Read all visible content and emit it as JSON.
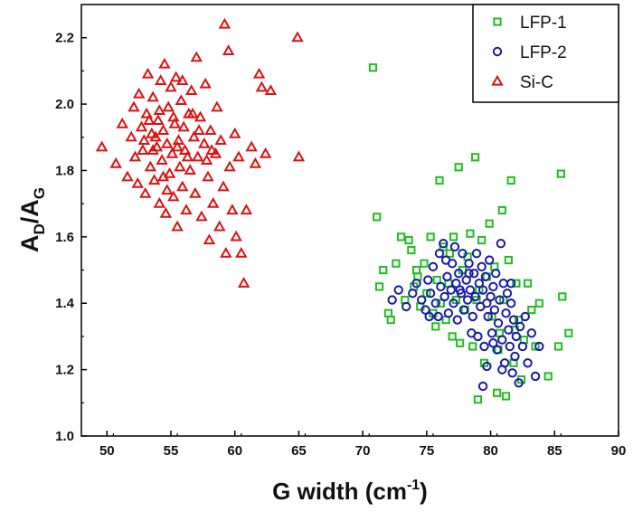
{
  "chart_data": {
    "type": "scatter",
    "title": "",
    "xlabel": "G width (cm",
    "xlabel_superscript": "-1",
    "xlabel_suffix": ")",
    "ylabel": "A",
    "ylabel_sub1": "D",
    "ylabel_mid": "/A",
    "ylabel_sub2": "G",
    "xlim": [
      48,
      90
    ],
    "ylim": [
      1.0,
      2.3
    ],
    "xticks": [
      50,
      55,
      60,
      65,
      70,
      75,
      80,
      85,
      90
    ],
    "yticks": [
      1.0,
      1.2,
      1.4,
      1.6,
      1.8,
      2.0,
      2.2
    ],
    "xtick_labels": [
      "50",
      "55",
      "60",
      "65",
      "70",
      "75",
      "80",
      "85",
      "90"
    ],
    "ytick_labels": [
      "1.0",
      "1.2",
      "1.4",
      "1.6",
      "1.8",
      "2.0",
      "2.2"
    ],
    "legend_position": "top-right",
    "series": [
      {
        "name": "LFP-1",
        "marker": "square",
        "color": "#22bb22",
        "points": [
          [
            70.8,
            2.11
          ],
          [
            71.1,
            1.66
          ],
          [
            71.3,
            1.45
          ],
          [
            71.6,
            1.5
          ],
          [
            72.0,
            1.37
          ],
          [
            72.2,
            1.35
          ],
          [
            72.6,
            1.52
          ],
          [
            73.0,
            1.6
          ],
          [
            73.3,
            1.41
          ],
          [
            73.6,
            1.59
          ],
          [
            73.8,
            1.56
          ],
          [
            74.0,
            1.45
          ],
          [
            74.3,
            1.48
          ],
          [
            74.5,
            1.39
          ],
          [
            74.8,
            1.52
          ],
          [
            75.0,
            1.43
          ],
          [
            75.3,
            1.6
          ],
          [
            75.5,
            1.37
          ],
          [
            75.7,
            1.33
          ],
          [
            76.0,
            1.77
          ],
          [
            76.1,
            1.4
          ],
          [
            76.3,
            1.57
          ],
          [
            76.5,
            1.35
          ],
          [
            76.7,
            1.46
          ],
          [
            77.0,
            1.3
          ],
          [
            77.1,
            1.6
          ],
          [
            77.3,
            1.41
          ],
          [
            77.5,
            1.81
          ],
          [
            77.6,
            1.28
          ],
          [
            77.8,
            1.5
          ],
          [
            78.0,
            1.38
          ],
          [
            78.2,
            1.54
          ],
          [
            78.4,
            1.61
          ],
          [
            78.6,
            1.27
          ],
          [
            78.8,
            1.84
          ],
          [
            79.0,
            1.11
          ],
          [
            79.1,
            1.44
          ],
          [
            79.3,
            1.59
          ],
          [
            79.5,
            1.22
          ],
          [
            79.7,
            1.48
          ],
          [
            79.9,
            1.64
          ],
          [
            80.1,
            1.36
          ],
          [
            80.3,
            1.51
          ],
          [
            80.5,
            1.13
          ],
          [
            80.7,
            1.31
          ],
          [
            80.9,
            1.68
          ],
          [
            81.0,
            1.41
          ],
          [
            81.2,
            1.12
          ],
          [
            81.4,
            1.53
          ],
          [
            81.6,
            1.77
          ],
          [
            81.8,
            1.22
          ],
          [
            82.0,
            1.46
          ],
          [
            82.2,
            1.35
          ],
          [
            82.4,
            1.17
          ],
          [
            82.6,
            1.29
          ],
          [
            82.9,
            1.46
          ],
          [
            83.2,
            1.38
          ],
          [
            83.5,
            1.27
          ],
          [
            83.8,
            1.4
          ],
          [
            84.5,
            1.18
          ],
          [
            85.3,
            1.27
          ],
          [
            85.5,
            1.79
          ],
          [
            85.6,
            1.42
          ],
          [
            86.1,
            1.31
          ],
          [
            74.2,
            1.5
          ],
          [
            75.8,
            1.47
          ],
          [
            76.8,
            1.55
          ],
          [
            78.9,
            1.41
          ],
          [
            80.6,
            1.26
          ],
          [
            81.9,
            1.32
          ]
        ]
      },
      {
        "name": "LFP-2",
        "marker": "circle",
        "color": "#1a1aa6",
        "points": [
          [
            72.3,
            1.41
          ],
          [
            72.8,
            1.44
          ],
          [
            73.4,
            1.39
          ],
          [
            73.9,
            1.43
          ],
          [
            74.2,
            1.46
          ],
          [
            74.6,
            1.41
          ],
          [
            74.9,
            1.38
          ],
          [
            75.1,
            1.47
          ],
          [
            75.3,
            1.43
          ],
          [
            75.5,
            1.51
          ],
          [
            75.7,
            1.4
          ],
          [
            75.9,
            1.36
          ],
          [
            76.0,
            1.55
          ],
          [
            76.1,
            1.45
          ],
          [
            76.3,
            1.58
          ],
          [
            76.4,
            1.42
          ],
          [
            76.6,
            1.48
          ],
          [
            76.7,
            1.37
          ],
          [
            76.9,
            1.44
          ],
          [
            77.0,
            1.52
          ],
          [
            77.1,
            1.4
          ],
          [
            77.3,
            1.46
          ],
          [
            77.4,
            1.35
          ],
          [
            77.5,
            1.49
          ],
          [
            77.7,
            1.43
          ],
          [
            77.8,
            1.55
          ],
          [
            77.9,
            1.38
          ],
          [
            78.1,
            1.47
          ],
          [
            78.2,
            1.41
          ],
          [
            78.3,
            1.52
          ],
          [
            78.4,
            1.44
          ],
          [
            78.6,
            1.36
          ],
          [
            78.7,
            1.49
          ],
          [
            78.8,
            1.42
          ],
          [
            78.9,
            1.55
          ],
          [
            79.0,
            1.3
          ],
          [
            79.1,
            1.46
          ],
          [
            79.2,
            1.39
          ],
          [
            79.3,
            1.51
          ],
          [
            79.4,
            1.44
          ],
          [
            79.5,
            1.27
          ],
          [
            79.6,
            1.48
          ],
          [
            79.7,
            1.21
          ],
          [
            79.8,
            1.36
          ],
          [
            79.9,
            1.53
          ],
          [
            80.0,
            1.42
          ],
          [
            80.1,
            1.31
          ],
          [
            80.2,
            1.45
          ],
          [
            80.3,
            1.38
          ],
          [
            80.4,
            1.49
          ],
          [
            80.5,
            1.26
          ],
          [
            80.6,
            1.34
          ],
          [
            80.7,
            1.41
          ],
          [
            80.8,
            1.58
          ],
          [
            80.9,
            1.29
          ],
          [
            81.0,
            1.46
          ],
          [
            81.1,
            1.22
          ],
          [
            81.2,
            1.37
          ],
          [
            81.3,
            1.43
          ],
          [
            81.4,
            1.32
          ],
          [
            81.5,
            1.27
          ],
          [
            81.6,
            1.4
          ],
          [
            81.7,
            1.19
          ],
          [
            81.8,
            1.35
          ],
          [
            81.9,
            1.24
          ],
          [
            82.0,
            1.3
          ],
          [
            82.2,
            1.16
          ],
          [
            82.3,
            1.33
          ],
          [
            82.5,
            1.27
          ],
          [
            82.7,
            1.36
          ],
          [
            82.9,
            1.22
          ],
          [
            83.2,
            1.31
          ],
          [
            83.5,
            1.18
          ],
          [
            83.8,
            1.27
          ],
          [
            79.4,
            1.15
          ],
          [
            80.9,
            1.2
          ],
          [
            78.3,
            1.49
          ],
          [
            77.2,
            1.57
          ],
          [
            76.5,
            1.53
          ],
          [
            75.2,
            1.36
          ],
          [
            79.7,
            1.4
          ],
          [
            80.2,
            1.28
          ],
          [
            78.5,
            1.31
          ],
          [
            77.6,
            1.44
          ],
          [
            81.6,
            1.46
          ]
        ]
      },
      {
        "name": "Si-C",
        "marker": "triangle",
        "color": "#dd1111",
        "points": [
          [
            49.6,
            1.87
          ],
          [
            50.7,
            1.82
          ],
          [
            51.2,
            1.94
          ],
          [
            51.6,
            1.78
          ],
          [
            51.9,
            1.9
          ],
          [
            52.1,
            1.99
          ],
          [
            52.2,
            1.84
          ],
          [
            52.4,
            1.76
          ],
          [
            52.5,
            2.03
          ],
          [
            52.7,
            1.93
          ],
          [
            52.8,
            1.86
          ],
          [
            53.0,
            1.73
          ],
          [
            53.1,
            1.97
          ],
          [
            53.2,
            2.09
          ],
          [
            53.4,
            1.81
          ],
          [
            53.5,
            1.91
          ],
          [
            53.6,
            2.02
          ],
          [
            53.7,
            1.77
          ],
          [
            53.9,
            1.87
          ],
          [
            54.0,
            1.95
          ],
          [
            54.1,
            1.7
          ],
          [
            54.2,
            2.07
          ],
          [
            54.3,
            1.83
          ],
          [
            54.4,
            1.92
          ],
          [
            54.5,
            2.12
          ],
          [
            54.6,
            1.67
          ],
          [
            54.7,
            1.88
          ],
          [
            54.8,
            1.99
          ],
          [
            54.9,
            1.79
          ],
          [
            55.0,
            2.05
          ],
          [
            55.1,
            1.85
          ],
          [
            55.2,
            1.72
          ],
          [
            55.3,
            1.94
          ],
          [
            55.4,
            2.08
          ],
          [
            55.5,
            1.63
          ],
          [
            55.6,
            1.89
          ],
          [
            55.7,
            1.81
          ],
          [
            55.8,
            2.01
          ],
          [
            55.9,
            1.75
          ],
          [
            56.0,
            1.93
          ],
          [
            56.1,
            1.86
          ],
          [
            56.2,
            1.68
          ],
          [
            56.4,
            1.97
          ],
          [
            56.5,
            1.8
          ],
          [
            56.6,
            2.04
          ],
          [
            56.8,
            1.9
          ],
          [
            56.9,
            1.73
          ],
          [
            57.0,
            2.14
          ],
          [
            57.1,
            1.84
          ],
          [
            57.3,
            1.96
          ],
          [
            57.4,
            1.66
          ],
          [
            57.6,
            1.88
          ],
          [
            57.7,
            2.06
          ],
          [
            57.9,
            1.78
          ],
          [
            58.0,
            1.59
          ],
          [
            58.1,
            1.92
          ],
          [
            58.3,
            1.7
          ],
          [
            58.5,
            1.85
          ],
          [
            58.6,
            1.99
          ],
          [
            58.8,
            1.63
          ],
          [
            58.9,
            1.89
          ],
          [
            59.1,
            1.75
          ],
          [
            59.2,
            2.24
          ],
          [
            59.3,
            1.55
          ],
          [
            59.5,
            2.16
          ],
          [
            59.6,
            1.81
          ],
          [
            59.8,
            1.68
          ],
          [
            60.0,
            1.91
          ],
          [
            60.1,
            1.6
          ],
          [
            60.3,
            1.84
          ],
          [
            60.5,
            1.55
          ],
          [
            60.7,
            1.46
          ],
          [
            60.9,
            1.68
          ],
          [
            61.3,
            1.87
          ],
          [
            61.6,
            1.82
          ],
          [
            61.9,
            2.09
          ],
          [
            62.1,
            2.05
          ],
          [
            62.4,
            1.85
          ],
          [
            62.8,
            2.04
          ],
          [
            64.9,
            2.2
          ],
          [
            65.0,
            1.84
          ],
          [
            53.3,
            1.95
          ],
          [
            54.1,
            1.98
          ],
          [
            55.2,
            1.96
          ],
          [
            56.3,
            1.84
          ],
          [
            57.2,
            1.92
          ],
          [
            58.2,
            1.86
          ],
          [
            53.8,
            1.9
          ],
          [
            55.9,
            2.07
          ],
          [
            54.7,
            1.74
          ],
          [
            52.9,
            1.89
          ],
          [
            56.7,
            1.97
          ],
          [
            57.8,
            1.83
          ],
          [
            55.5,
            1.87
          ],
          [
            54.4,
            1.78
          ],
          [
            53.6,
            1.86
          ]
        ]
      }
    ]
  }
}
